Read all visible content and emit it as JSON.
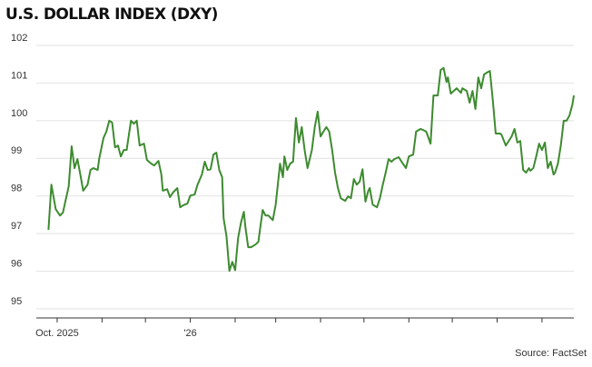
{
  "chart_data": {
    "type": "line",
    "title": "U.S. DOLLAR INDEX (DXY)",
    "source": "Source: FactSet",
    "x": [
      -6,
      -4,
      -1,
      2,
      4,
      8,
      10,
      12,
      14,
      16,
      18,
      21,
      23,
      25,
      28,
      29,
      32,
      34,
      36,
      38,
      40,
      42,
      44,
      46,
      48,
      51,
      53,
      55,
      57,
      60,
      62,
      65,
      67,
      70,
      72,
      73,
      76,
      78,
      80,
      83,
      85,
      87,
      90,
      92,
      95,
      97,
      100,
      102,
      104,
      106,
      108,
      110,
      112,
      114,
      115,
      117,
      119,
      121,
      123,
      125,
      127,
      129,
      130,
      132,
      134,
      137,
      139,
      142,
      144,
      146,
      149,
      151,
      154,
      156,
      157,
      159,
      161,
      163,
      165,
      167,
      169,
      171,
      173,
      176,
      178,
      180,
      182,
      184,
      186,
      188,
      190,
      192,
      194,
      196,
      199,
      201,
      203,
      205,
      207,
      209,
      211,
      213,
      215,
      216,
      218,
      221,
      223,
      225,
      227,
      229,
      231,
      233,
      236,
      238,
      241,
      243,
      246,
      248,
      251,
      253,
      255,
      258,
      260,
      263,
      265,
      267,
      269,
      270,
      272,
      274,
      276,
      279,
      280,
      283,
      285,
      287,
      289,
      291,
      293,
      295,
      297,
      299,
      301,
      303,
      306,
      307,
      310,
      312,
      314,
      316,
      318,
      320,
      322,
      324,
      326,
      327,
      329,
      331,
      333,
      335,
      337,
      339,
      341,
      343,
      344,
      346,
      348,
      350,
      352,
      354,
      356,
      357
    ],
    "series": [
      {
        "name": "DXY",
        "color": "#3d8b2f",
        "values": [
          97.1,
          98.3,
          97.65,
          97.48,
          97.56,
          98.26,
          99.32,
          98.74,
          98.98,
          98.57,
          98.14,
          98.3,
          98.69,
          98.74,
          98.69,
          98.98,
          99.54,
          99.71,
          100.0,
          99.95,
          99.29,
          99.34,
          99.05,
          99.22,
          99.22,
          100.0,
          99.92,
          100.0,
          99.34,
          99.39,
          98.96,
          98.86,
          98.81,
          98.93,
          98.57,
          98.14,
          98.18,
          97.97,
          98.09,
          98.21,
          97.7,
          97.75,
          97.8,
          98.01,
          98.04,
          98.3,
          98.57,
          98.91,
          98.69,
          98.71,
          99.1,
          99.15,
          98.69,
          98.5,
          97.41,
          96.93,
          96.01,
          96.25,
          96.03,
          96.88,
          97.29,
          97.58,
          97.19,
          96.64,
          96.64,
          96.71,
          96.78,
          97.63,
          97.48,
          97.48,
          97.36,
          97.77,
          98.86,
          98.5,
          99.05,
          98.69,
          98.86,
          98.91,
          100.07,
          99.42,
          99.83,
          99.22,
          98.74,
          99.22,
          99.83,
          100.24,
          99.58,
          99.71,
          99.83,
          99.71,
          99.22,
          98.62,
          98.21,
          97.94,
          97.87,
          97.99,
          97.94,
          98.45,
          98.3,
          98.38,
          98.71,
          97.85,
          98.14,
          98.21,
          97.77,
          97.7,
          97.94,
          98.3,
          98.62,
          98.98,
          98.91,
          98.98,
          99.03,
          98.91,
          98.74,
          99.05,
          99.1,
          99.71,
          99.78,
          99.75,
          99.71,
          99.39,
          100.67,
          100.67,
          101.35,
          101.4,
          101.03,
          101.15,
          100.72,
          100.79,
          100.86,
          100.74,
          100.86,
          100.79,
          100.48,
          100.79,
          100.31,
          101.15,
          100.86,
          101.23,
          101.28,
          101.32,
          100.55,
          99.66,
          99.66,
          99.63,
          99.34,
          99.46,
          99.58,
          99.78,
          99.42,
          99.46,
          98.69,
          98.62,
          98.74,
          98.67,
          98.74,
          99.05,
          99.39,
          99.22,
          99.42,
          98.74,
          98.91,
          98.57,
          98.62,
          98.86,
          99.34,
          100.0,
          100.0,
          100.14,
          100.43,
          100.67
        ]
      }
    ],
    "xlim": [
      -14.4,
      357
    ],
    "xticks": [
      {
        "value": 0,
        "label": "Oct. 2025"
      },
      {
        "value": 92,
        "label": "'26"
      }
    ],
    "minor_xticks": [
      31,
      61,
      123,
      151,
      182,
      212,
      243,
      273,
      304,
      335
    ],
    "ylim": [
      94.76,
      102.12
    ],
    "yticks": [
      95,
      96,
      97,
      98,
      99,
      100,
      101,
      102
    ],
    "grid": true
  }
}
